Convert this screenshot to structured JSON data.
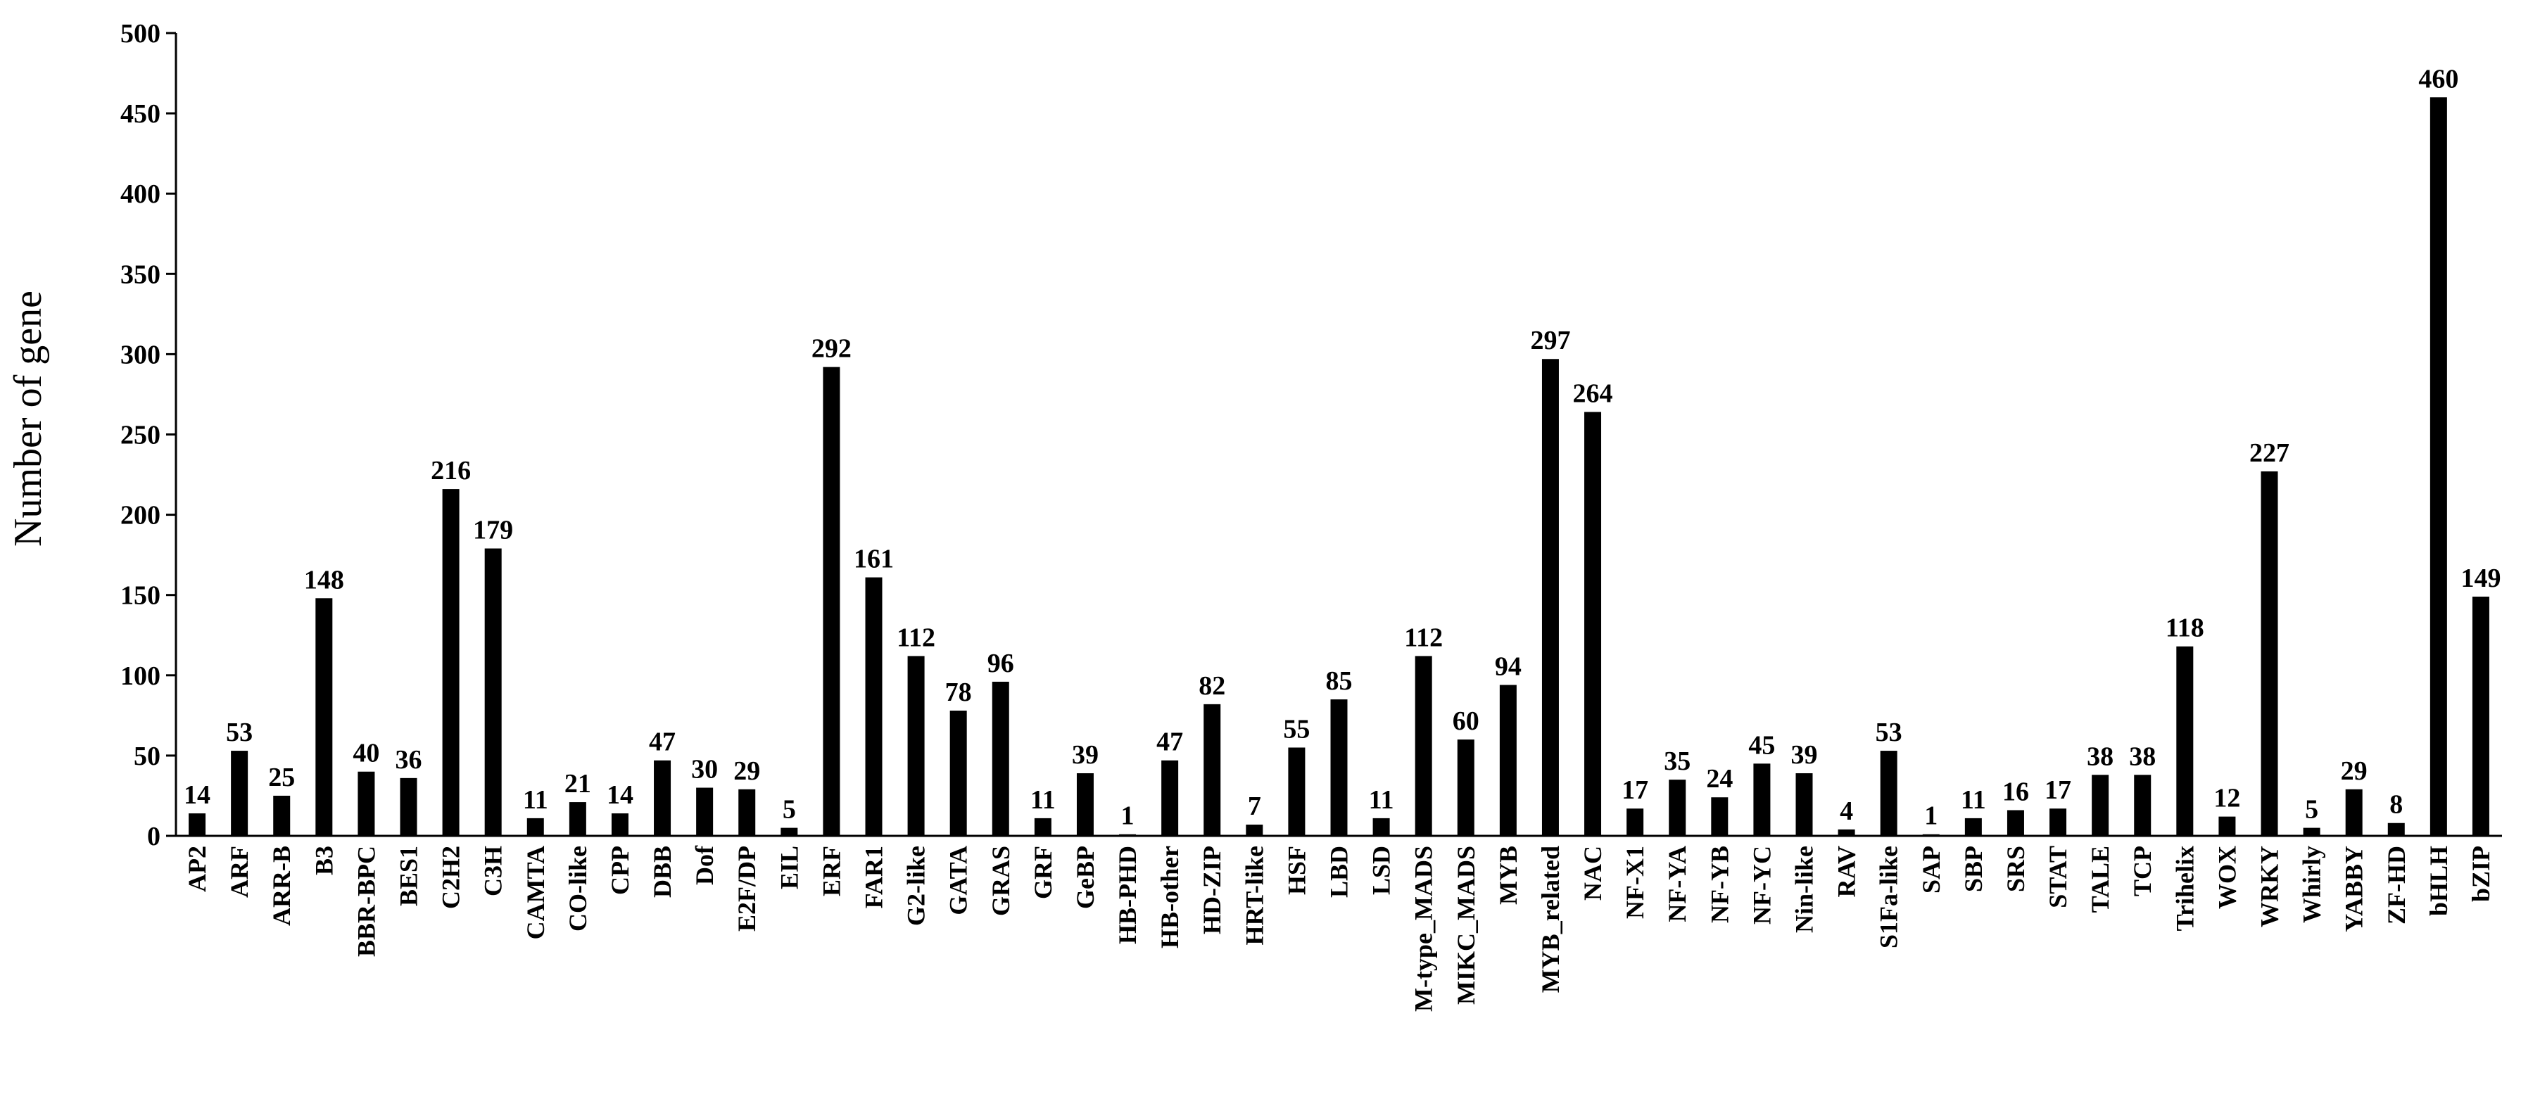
{
  "chart_data": {
    "type": "bar",
    "title": "",
    "xlabel": "",
    "ylabel": "Number of gene",
    "ylim": [
      0,
      500
    ],
    "yticks": [
      0,
      50,
      100,
      150,
      200,
      250,
      300,
      350,
      400,
      450,
      500
    ],
    "grid": false,
    "legend": "none",
    "bar_color": "#000000",
    "categories": [
      "AP2",
      "ARF",
      "ARR-B",
      "B3",
      "BBR-BPC",
      "BES1",
      "C2H2",
      "C3H",
      "CAMTA",
      "CO-like",
      "CPP",
      "DBB",
      "Dof",
      "E2F/DP",
      "EIL",
      "ERF",
      "FAR1",
      "G2-like",
      "GATA",
      "GRAS",
      "GRF",
      "GeBP",
      "HB-PHD",
      "HB-other",
      "HD-ZIP",
      "HRT-like",
      "HSF",
      "LBD",
      "LSD",
      "M-type_MADS",
      "MIKC_MADS",
      "MYB",
      "MYB_related",
      "NAC",
      "NF-X1",
      "NF-YA",
      "NF-YB",
      "NF-YC",
      "Nin-like",
      "RAV",
      "S1Fa-like",
      "SAP",
      "SBP",
      "SRS",
      "STAT",
      "TALE",
      "TCP",
      "Trihelix",
      "WOX",
      "WRKY",
      "Whirly",
      "YABBY",
      "ZF-HD",
      "bHLH",
      "bZIP"
    ],
    "values": [
      14,
      53,
      25,
      148,
      40,
      36,
      216,
      179,
      11,
      21,
      14,
      47,
      30,
      29,
      5,
      292,
      161,
      112,
      78,
      96,
      11,
      39,
      1,
      47,
      82,
      7,
      55,
      85,
      11,
      112,
      60,
      94,
      297,
      264,
      17,
      35,
      24,
      45,
      39,
      4,
      53,
      1,
      11,
      16,
      17,
      38,
      38,
      118,
      12,
      227,
      5,
      29,
      8,
      460,
      149
    ]
  }
}
